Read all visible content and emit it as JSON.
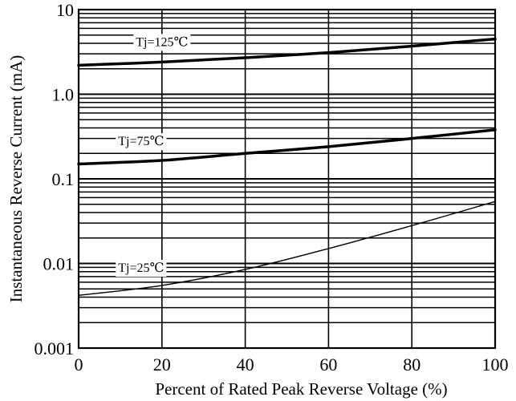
{
  "chart_data": {
    "type": "line",
    "title": "",
    "xlabel": "Percent of Rated Peak Reverse Voltage (%)",
    "ylabel": "Instantaneous Reverse Current (mA)",
    "xlim": [
      0,
      100
    ],
    "ylim": [
      0.001,
      10
    ],
    "yscale": "log",
    "grid": true,
    "x_ticks": [
      0,
      20,
      40,
      60,
      80,
      100
    ],
    "x_tick_labels": [
      "0",
      "20",
      "40",
      "60",
      "80",
      "100"
    ],
    "y_ticks": [
      0.001,
      0.01,
      0.1,
      1,
      10
    ],
    "y_tick_labels": [
      "0.001",
      "0.01",
      "0.1",
      "1.0",
      "10"
    ],
    "series": [
      {
        "name": "Tj=125℃",
        "label_x": 20,
        "x": [
          0,
          20,
          40,
          60,
          80,
          100
        ],
        "y": [
          2.2,
          2.4,
          2.7,
          3.1,
          3.7,
          4.5
        ],
        "line_width": 3.5
      },
      {
        "name": "Tj=75℃",
        "label_x": 15,
        "x": [
          0,
          20,
          40,
          60,
          80,
          100
        ],
        "y": [
          0.15,
          0.165,
          0.2,
          0.24,
          0.3,
          0.38
        ],
        "line_width": 3.5
      },
      {
        "name": "Tj=25℃",
        "label_x": 15,
        "x": [
          0,
          20,
          40,
          60,
          80,
          100
        ],
        "y": [
          0.0042,
          0.0055,
          0.0085,
          0.015,
          0.028,
          0.054
        ],
        "line_width": 1.4
      }
    ]
  }
}
